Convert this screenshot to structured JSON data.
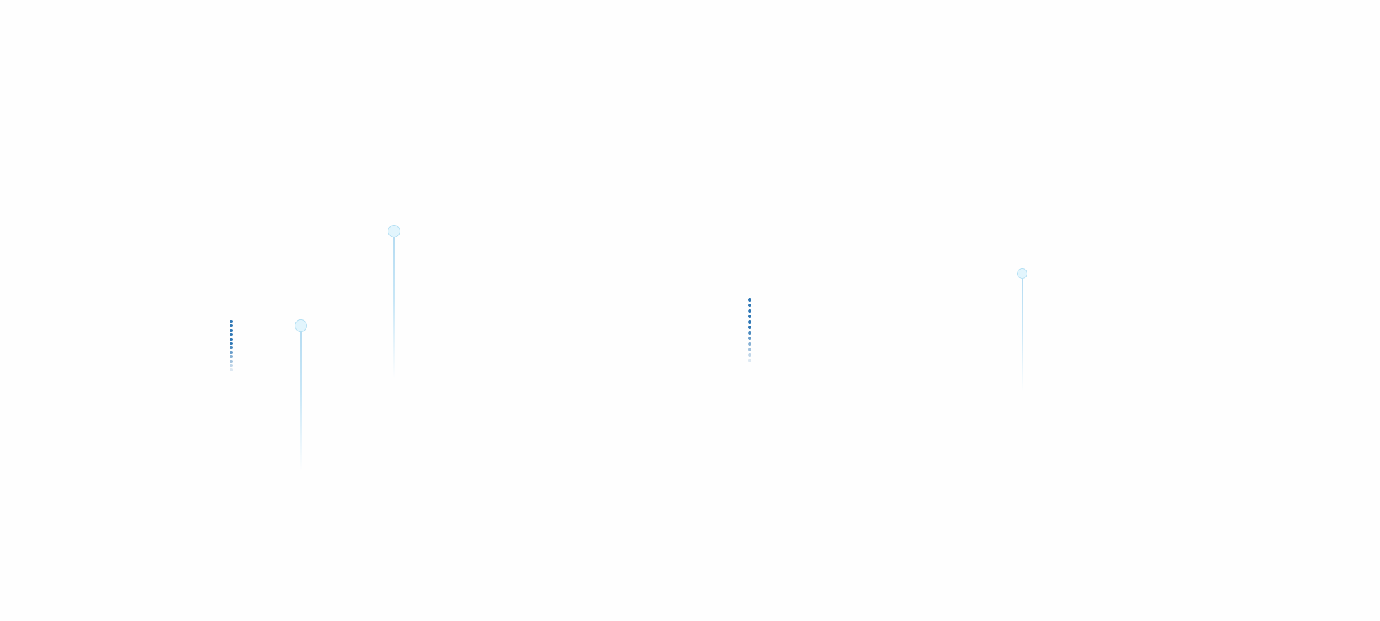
{
  "colors": {
    "background": "#fefefe",
    "dot_dark": "#2f77b5",
    "pin_fill": "#e2f5fd",
    "pin_stroke": "#b3dff3",
    "stem": "#b6dcf2"
  },
  "decorations": {
    "dot_columns": [
      {
        "icon": "loading-dots-icon",
        "count": 12
      },
      {
        "icon": "loading-dots-icon",
        "count": 12
      }
    ],
    "pins": [
      {
        "icon": "pin-marker-icon"
      },
      {
        "icon": "pin-marker-icon"
      },
      {
        "icon": "pin-marker-icon"
      }
    ]
  }
}
